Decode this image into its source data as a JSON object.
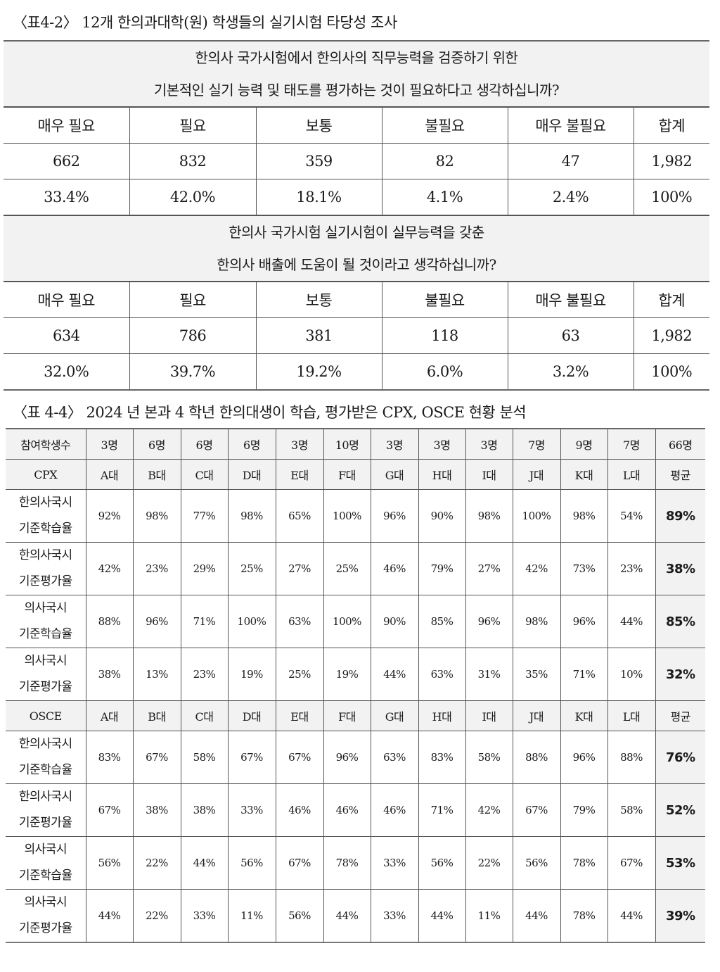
{
  "table1": {
    "caption": "〈표4-2〉 12개 한의과대학(원) 학생들의 실기시험 타당성 조사",
    "columns": [
      "매우 필요",
      "필요",
      "보통",
      "불필요",
      "매우 불필요",
      "합계"
    ],
    "questions": [
      {
        "line1": "한의사 국가시험에서 한의사의 직무능력을 검증하기 위한",
        "line2": "기본적인 실기 능력 및 태도를 평가하는 것이 필요하다고 생각하십니까?",
        "counts": [
          "662",
          "832",
          "359",
          "82",
          "47",
          "1,982"
        ],
        "percents": [
          "33.4%",
          "42.0%",
          "18.1%",
          "4.1%",
          "2.4%",
          "100%"
        ]
      },
      {
        "line1": "한의사 국가시험 실기시험이 실무능력을 갖춘",
        "line2": "한의사 배출에 도움이 될 것이라고 생각하십니까?",
        "counts": [
          "634",
          "786",
          "381",
          "118",
          "63",
          "1,982"
        ],
        "percents": [
          "32.0%",
          "39.7%",
          "19.2%",
          "6.0%",
          "3.2%",
          "100%"
        ]
      }
    ]
  },
  "table2": {
    "caption": "〈표 4-4〉 2024 년 본과 4 학년 한의대생이 학습, 평가받은 CPX, OSCE 현황 분석",
    "participants": {
      "label": "참여학생수",
      "values": [
        "3명",
        "6명",
        "6명",
        "6명",
        "3명",
        "10명",
        "3명",
        "3명",
        "3명",
        "7명",
        "9명",
        "7명",
        "66명"
      ]
    },
    "schools": [
      "A대",
      "B대",
      "C대",
      "D대",
      "E대",
      "F대",
      "G대",
      "H대",
      "I대",
      "J대",
      "K대",
      "L대",
      "평균"
    ],
    "sections": [
      {
        "name": "CPX",
        "rows": [
          {
            "label1": "한의사국시",
            "label2": "기준학습율",
            "values": [
              "92%",
              "98%",
              "77%",
              "98%",
              "65%",
              "100%",
              "96%",
              "90%",
              "98%",
              "100%",
              "98%",
              "54%"
            ],
            "avg": "89%"
          },
          {
            "label1": "한의사국시",
            "label2": "기준평가율",
            "values": [
              "42%",
              "23%",
              "29%",
              "25%",
              "27%",
              "25%",
              "46%",
              "79%",
              "27%",
              "42%",
              "73%",
              "23%"
            ],
            "avg": "38%"
          },
          {
            "label1": "의사국시",
            "label2": "기준학습율",
            "values": [
              "88%",
              "96%",
              "71%",
              "100%",
              "63%",
              "100%",
              "90%",
              "85%",
              "96%",
              "98%",
              "96%",
              "44%"
            ],
            "avg": "85%"
          },
          {
            "label1": "의사국시",
            "label2": "기준평가율",
            "values": [
              "38%",
              "13%",
              "23%",
              "19%",
              "25%",
              "19%",
              "44%",
              "63%",
              "31%",
              "35%",
              "71%",
              "10%"
            ],
            "avg": "32%"
          }
        ]
      },
      {
        "name": "OSCE",
        "rows": [
          {
            "label1": "한의사국시",
            "label2": "기준학습율",
            "values": [
              "83%",
              "67%",
              "58%",
              "67%",
              "67%",
              "96%",
              "63%",
              "83%",
              "58%",
              "88%",
              "96%",
              "88%"
            ],
            "avg": "76%"
          },
          {
            "label1": "한의사국시",
            "label2": "기준평가율",
            "values": [
              "67%",
              "38%",
              "38%",
              "33%",
              "46%",
              "46%",
              "46%",
              "71%",
              "42%",
              "67%",
              "79%",
              "58%"
            ],
            "avg": "52%"
          },
          {
            "label1": "의사국시",
            "label2": "기준학습율",
            "values": [
              "56%",
              "22%",
              "44%",
              "56%",
              "67%",
              "78%",
              "33%",
              "56%",
              "22%",
              "56%",
              "78%",
              "67%"
            ],
            "avg": "53%"
          },
          {
            "label1": "의사국시",
            "label2": "기준평가율",
            "values": [
              "44%",
              "22%",
              "33%",
              "11%",
              "56%",
              "44%",
              "33%",
              "44%",
              "11%",
              "44%",
              "78%",
              "44%"
            ],
            "avg": "39%"
          }
        ]
      }
    ]
  }
}
